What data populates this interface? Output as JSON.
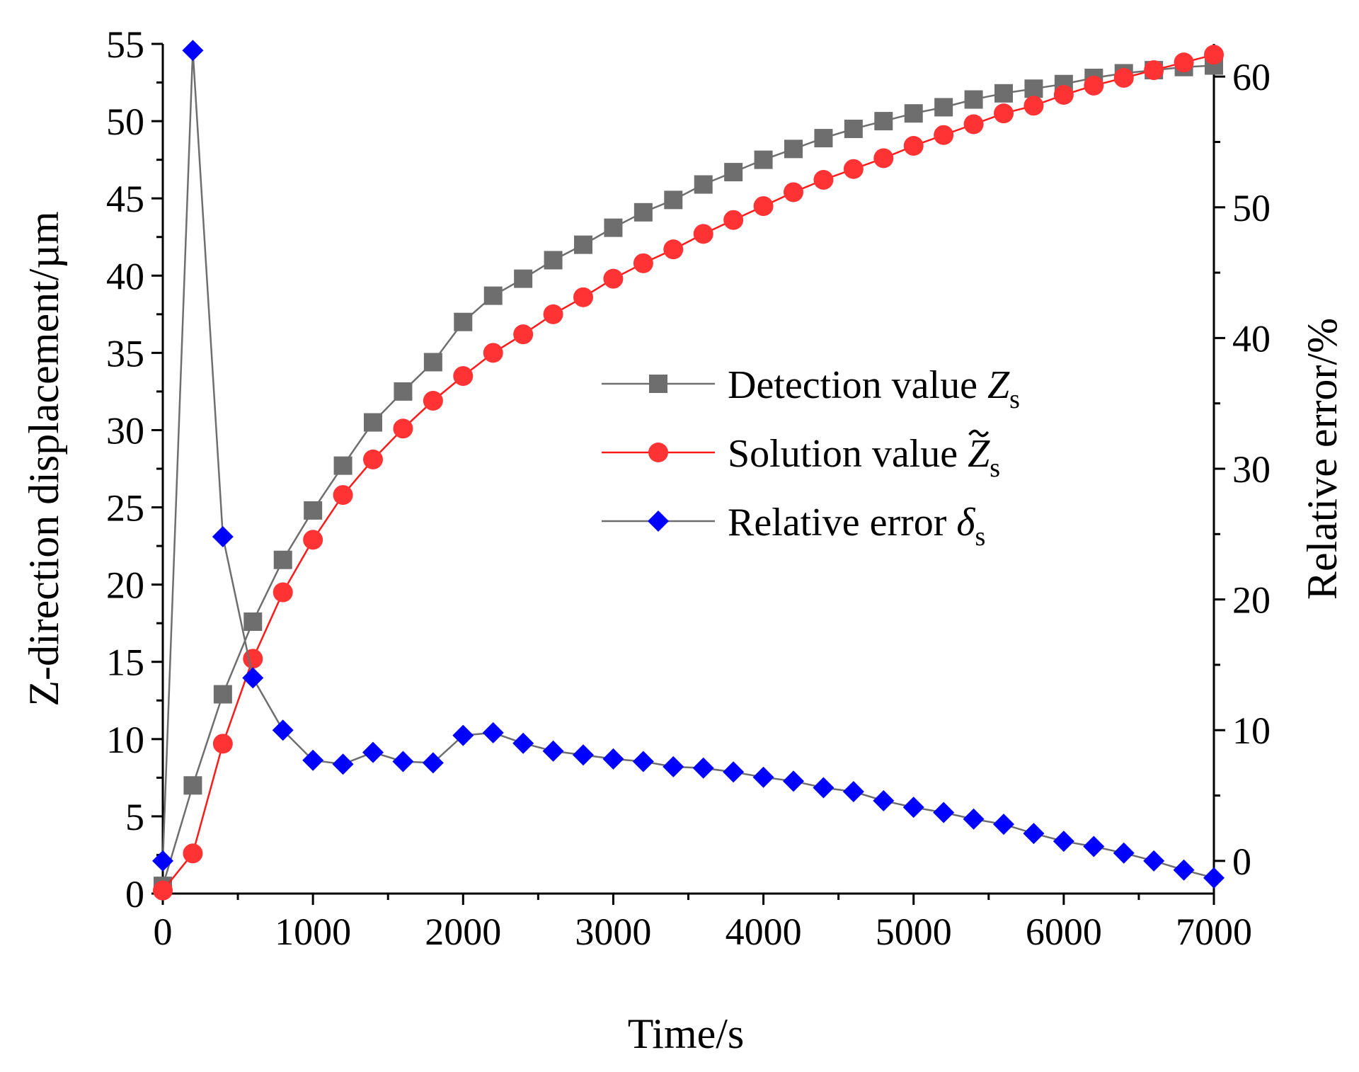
{
  "chart_data": {
    "type": "line",
    "title": "",
    "xlabel": "Time/s",
    "ylabel_left": "Z-direction displacement/µm",
    "ylabel_right": "Relative error/%",
    "xlim": [
      0,
      7000
    ],
    "ylim_left": [
      0,
      55
    ],
    "ylim_right": [
      -2.5,
      62.5
    ],
    "x_ticks": [
      "0",
      "1000",
      "2000",
      "3000",
      "4000",
      "5000",
      "6000",
      "7000"
    ],
    "y_left_ticks": [
      "0",
      "5",
      "10",
      "15",
      "20",
      "25",
      "30",
      "35",
      "40",
      "45",
      "50",
      "55"
    ],
    "y_right_ticks": [
      "0",
      "10",
      "20",
      "30",
      "40",
      "50",
      "60"
    ],
    "grid": false,
    "legend_position": "center-right",
    "x": [
      0,
      200,
      400,
      600,
      800,
      1000,
      1200,
      1400,
      1600,
      1800,
      2000,
      2200,
      2400,
      2600,
      2800,
      3000,
      3200,
      3400,
      3600,
      3800,
      4000,
      4200,
      4400,
      4600,
      4800,
      5000,
      5200,
      5400,
      5600,
      5800,
      6000,
      6200,
      6400,
      6600,
      6800,
      7000
    ],
    "series": [
      {
        "name": "Detection value",
        "symbol": "Z",
        "subscript": "s",
        "tilde": false,
        "axis": "left",
        "marker": "square",
        "line_color": "#6e6e6e",
        "marker_color": "#6e6e6e",
        "values": [
          0.5,
          7.0,
          12.9,
          17.6,
          21.6,
          24.8,
          27.7,
          30.5,
          32.5,
          34.4,
          37.0,
          38.7,
          39.8,
          41.0,
          42.0,
          43.1,
          44.1,
          44.9,
          45.9,
          46.7,
          47.5,
          48.2,
          48.9,
          49.5,
          50.0,
          50.5,
          50.9,
          51.4,
          51.8,
          52.1,
          52.4,
          52.8,
          53.1,
          53.3,
          53.5,
          53.6
        ]
      },
      {
        "name": "Solution value",
        "symbol": "Z",
        "subscript": "s",
        "tilde": true,
        "axis": "left",
        "marker": "circle",
        "line_color": "#ff1a1a",
        "marker_color": "#ff3333",
        "values": [
          0.2,
          2.6,
          9.7,
          15.2,
          19.5,
          22.9,
          25.8,
          28.1,
          30.1,
          31.9,
          33.5,
          35.0,
          36.2,
          37.5,
          38.6,
          39.8,
          40.8,
          41.7,
          42.7,
          43.6,
          44.5,
          45.4,
          46.2,
          46.9,
          47.6,
          48.4,
          49.1,
          49.8,
          50.5,
          51.0,
          51.7,
          52.3,
          52.8,
          53.3,
          53.8,
          54.3
        ]
      },
      {
        "name": "Relative error",
        "symbol": "δ",
        "subscript": "s",
        "tilde": false,
        "axis": "right",
        "marker": "diamond",
        "line_color": "#6e6e6e",
        "marker_color": "#0000ff",
        "values": [
          0.0,
          62.0,
          24.8,
          14.0,
          10.0,
          7.7,
          7.4,
          8.3,
          7.6,
          7.5,
          9.6,
          9.8,
          9.0,
          8.4,
          8.1,
          7.8,
          7.6,
          7.2,
          7.1,
          6.8,
          6.4,
          6.1,
          5.6,
          5.3,
          4.6,
          4.1,
          3.7,
          3.2,
          2.8,
          2.1,
          1.5,
          1.1,
          0.6,
          0.0,
          -0.7,
          -1.3
        ]
      }
    ]
  }
}
